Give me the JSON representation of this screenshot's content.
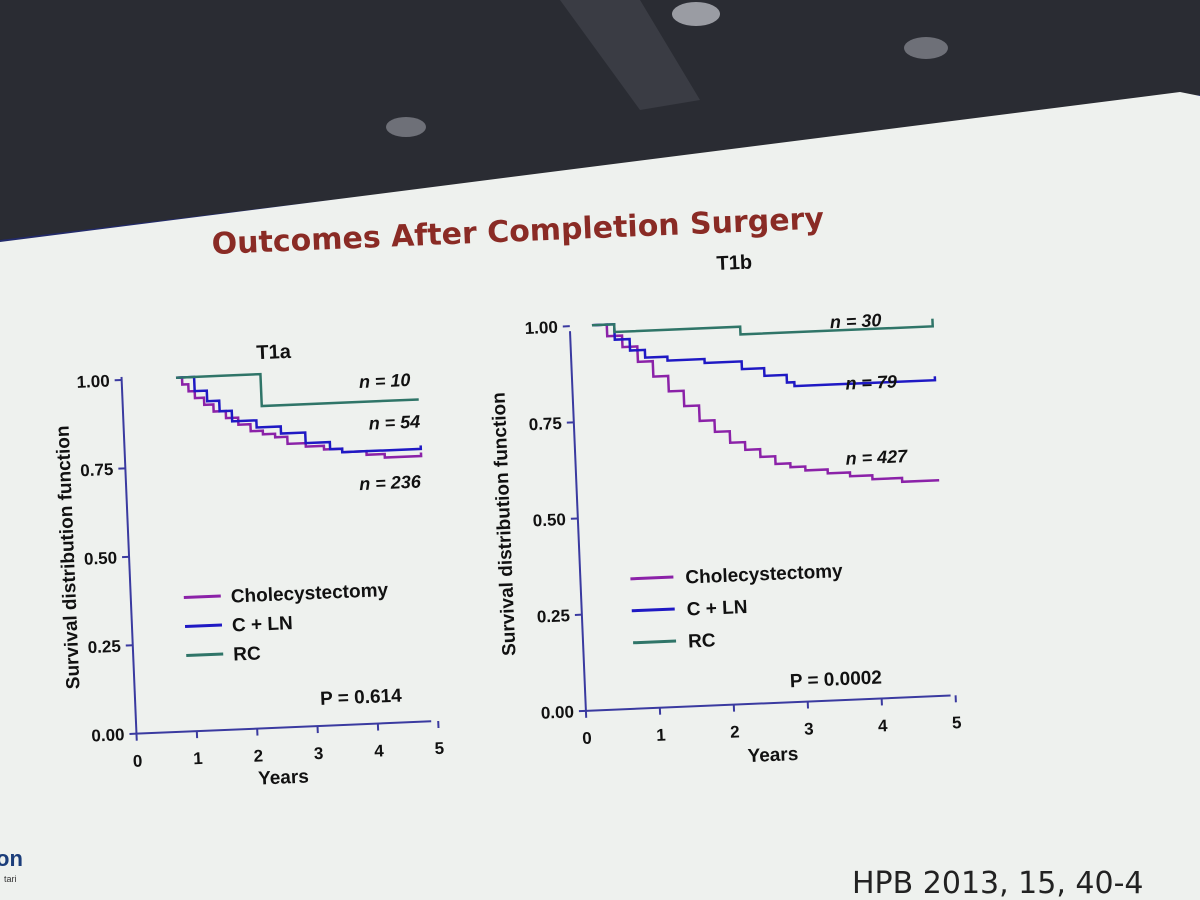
{
  "slide": {
    "title": "Outcomes After Completion Surgery",
    "citation": "HPB 2013, 15, 40-4",
    "logo_text": "on",
    "logo_sub": "tari"
  },
  "colors": {
    "cholecystectomy": "#8b22a8",
    "c_ln": "#1f19c4",
    "rc": "#2f7568"
  },
  "chart_data": [
    {
      "type": "line",
      "title": "T1a",
      "xlabel": "Years",
      "ylabel": "Survival distribution function",
      "xlim": [
        0,
        5
      ],
      "ylim": [
        0,
        1
      ],
      "x_ticks": [
        "0",
        "1",
        "2",
        "3",
        "4",
        "5"
      ],
      "y_ticks": [
        "0.00",
        "0.25",
        "0.50",
        "0.75",
        "1.00"
      ],
      "p_value": "P = 0.614",
      "series": [
        {
          "name": "Cholecystectomy",
          "color_key": "cholecystectomy",
          "n_label": "n = 236",
          "points": [
            [
              0.9,
              1.0
            ],
            [
              1.0,
              0.98
            ],
            [
              1.1,
              0.96
            ],
            [
              1.2,
              0.94
            ],
            [
              1.35,
              0.92
            ],
            [
              1.5,
              0.9
            ],
            [
              1.7,
              0.88
            ],
            [
              1.9,
              0.86
            ],
            [
              2.1,
              0.84
            ],
            [
              2.3,
              0.83
            ],
            [
              2.5,
              0.82
            ],
            [
              2.7,
              0.8
            ],
            [
              3.0,
              0.79
            ],
            [
              3.3,
              0.78
            ],
            [
              3.6,
              0.77
            ],
            [
              4.0,
              0.76
            ],
            [
              4.3,
              0.75
            ],
            [
              4.9,
              0.76
            ]
          ]
        },
        {
          "name": "C + LN",
          "color_key": "c_ln",
          "n_label": "n = 54",
          "points": [
            [
              0.9,
              1.0
            ],
            [
              1.2,
              0.96
            ],
            [
              1.4,
              0.93
            ],
            [
              1.6,
              0.9
            ],
            [
              1.8,
              0.87
            ],
            [
              2.2,
              0.85
            ],
            [
              2.6,
              0.83
            ],
            [
              3.0,
              0.8
            ],
            [
              3.4,
              0.78
            ],
            [
              3.6,
              0.77
            ],
            [
              4.0,
              0.77
            ],
            [
              4.9,
              0.78
            ]
          ]
        },
        {
          "name": "RC",
          "color_key": "rc",
          "n_label": "n = 10",
          "points": [
            [
              0.9,
              1.0
            ],
            [
              1.6,
              1.0
            ],
            [
              2.3,
              1.0
            ],
            [
              2.3,
              0.91
            ],
            [
              2.3,
              0.91
            ],
            [
              4.9,
              0.91
            ]
          ]
        }
      ]
    },
    {
      "type": "line",
      "title": "T1b",
      "xlabel": "Years",
      "ylabel": "Survival distribution function",
      "xlim": [
        0,
        5
      ],
      "ylim": [
        0,
        1
      ],
      "x_ticks": [
        "0",
        "1",
        "2",
        "3",
        "4",
        "5"
      ],
      "y_ticks": [
        "0.00",
        "0.25",
        "0.50",
        "0.75",
        "1.00"
      ],
      "p_value": "P = 0.0002",
      "series": [
        {
          "name": "Cholecystectomy",
          "color_key": "cholecystectomy",
          "n_label": "n = 427",
          "points": [
            [
              0.3,
              1.0
            ],
            [
              0.5,
              0.97
            ],
            [
              0.7,
              0.94
            ],
            [
              0.9,
              0.9
            ],
            [
              1.1,
              0.86
            ],
            [
              1.3,
              0.82
            ],
            [
              1.5,
              0.78
            ],
            [
              1.7,
              0.74
            ],
            [
              1.9,
              0.71
            ],
            [
              2.1,
              0.68
            ],
            [
              2.3,
              0.66
            ],
            [
              2.5,
              0.64
            ],
            [
              2.7,
              0.62
            ],
            [
              2.9,
              0.61
            ],
            [
              3.1,
              0.6
            ],
            [
              3.4,
              0.59
            ],
            [
              3.7,
              0.58
            ],
            [
              4.0,
              0.57
            ],
            [
              4.4,
              0.56
            ],
            [
              4.9,
              0.56
            ]
          ]
        },
        {
          "name": "C + LN",
          "color_key": "c_ln",
          "n_label": "n = 79",
          "points": [
            [
              0.3,
              1.0
            ],
            [
              0.6,
              0.96
            ],
            [
              0.8,
              0.93
            ],
            [
              1.0,
              0.91
            ],
            [
              1.3,
              0.9
            ],
            [
              1.8,
              0.89
            ],
            [
              2.3,
              0.87
            ],
            [
              2.6,
              0.85
            ],
            [
              2.9,
              0.83
            ],
            [
              3.0,
              0.82
            ],
            [
              3.5,
              0.82
            ],
            [
              4.0,
              0.82
            ],
            [
              4.9,
              0.83
            ]
          ]
        },
        {
          "name": "RC",
          "color_key": "rc",
          "n_label": "n = 30",
          "points": [
            [
              0.3,
              1.0
            ],
            [
              0.6,
              0.98
            ],
            [
              2.3,
              0.98
            ],
            [
              2.3,
              0.96
            ],
            [
              4.9,
              0.98
            ]
          ]
        }
      ]
    }
  ]
}
